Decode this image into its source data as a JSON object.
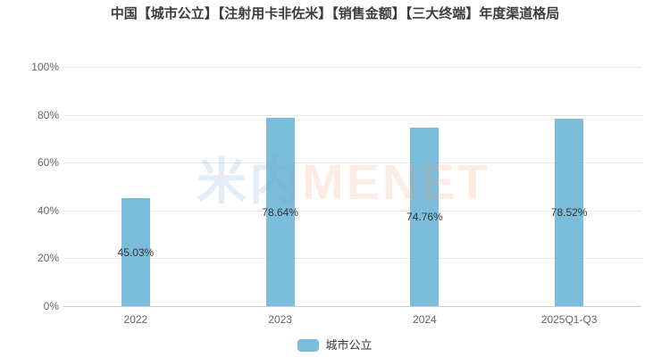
{
  "chart_data": {
    "type": "bar",
    "title": "中国【城市公立】【注射用卡非佐米】【销售金额】【三大终端】年度渠道格局",
    "categories": [
      "2022",
      "2023",
      "2024",
      "2025Q1-Q3"
    ],
    "series": [
      {
        "name": "城市公立",
        "values": [
          45.03,
          78.64,
          74.76,
          78.52
        ],
        "labels": [
          "45.03%",
          "78.64%",
          "74.76%",
          "78.52%"
        ],
        "color": "#7BBDDB"
      }
    ],
    "xlabel": "",
    "ylabel": "",
    "ylim": [
      0,
      100
    ],
    "yticks": [
      "0%",
      "20%",
      "40%",
      "60%",
      "80%",
      "100%"
    ],
    "grid": true,
    "legend_position": "bottom",
    "value_label_position": "middle-of-bar"
  },
  "watermark": {
    "cn": "米内",
    "en": "MENET"
  },
  "legend": {
    "items": [
      {
        "label": "城市公立",
        "color": "#7BBDDB"
      }
    ]
  },
  "colors": {
    "bar": "#7BBDDB",
    "gridline": "#E8E8E8",
    "axis_line": "#CCCCCC",
    "tick_label": "#666666",
    "value_label": "#333333",
    "title": "#3C3C3C",
    "watermark_cn": "#7DA0C333",
    "watermark_en": "#F096642E",
    "background": "#FFFFFF"
  }
}
